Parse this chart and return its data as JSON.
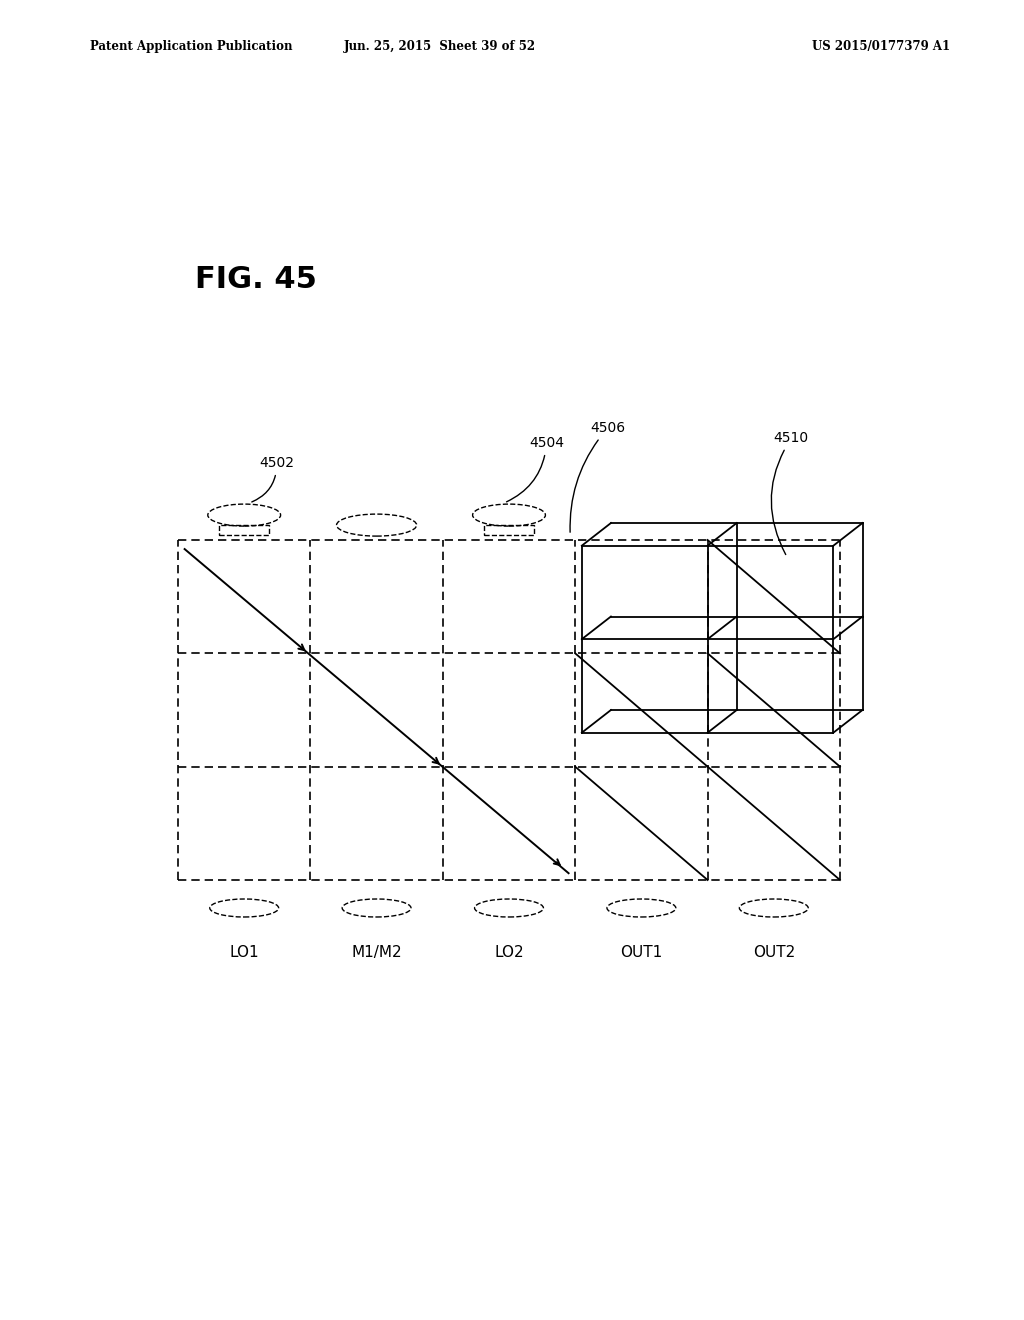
{
  "header_left": "Patent Application Publication",
  "header_mid": "Jun. 25, 2015  Sheet 39 of 52",
  "header_right": "US 2015/0177379 A1",
  "fig_label": "FIG. 45",
  "col_labels": [
    "LO1",
    "M1/M2",
    "LO2",
    "OUT1",
    "OUT2"
  ],
  "label_4502": "4502",
  "label_4504": "4504",
  "label_4506": "4506",
  "label_4510": "4510",
  "line_color": "#000000",
  "background_color": "#ffffff"
}
